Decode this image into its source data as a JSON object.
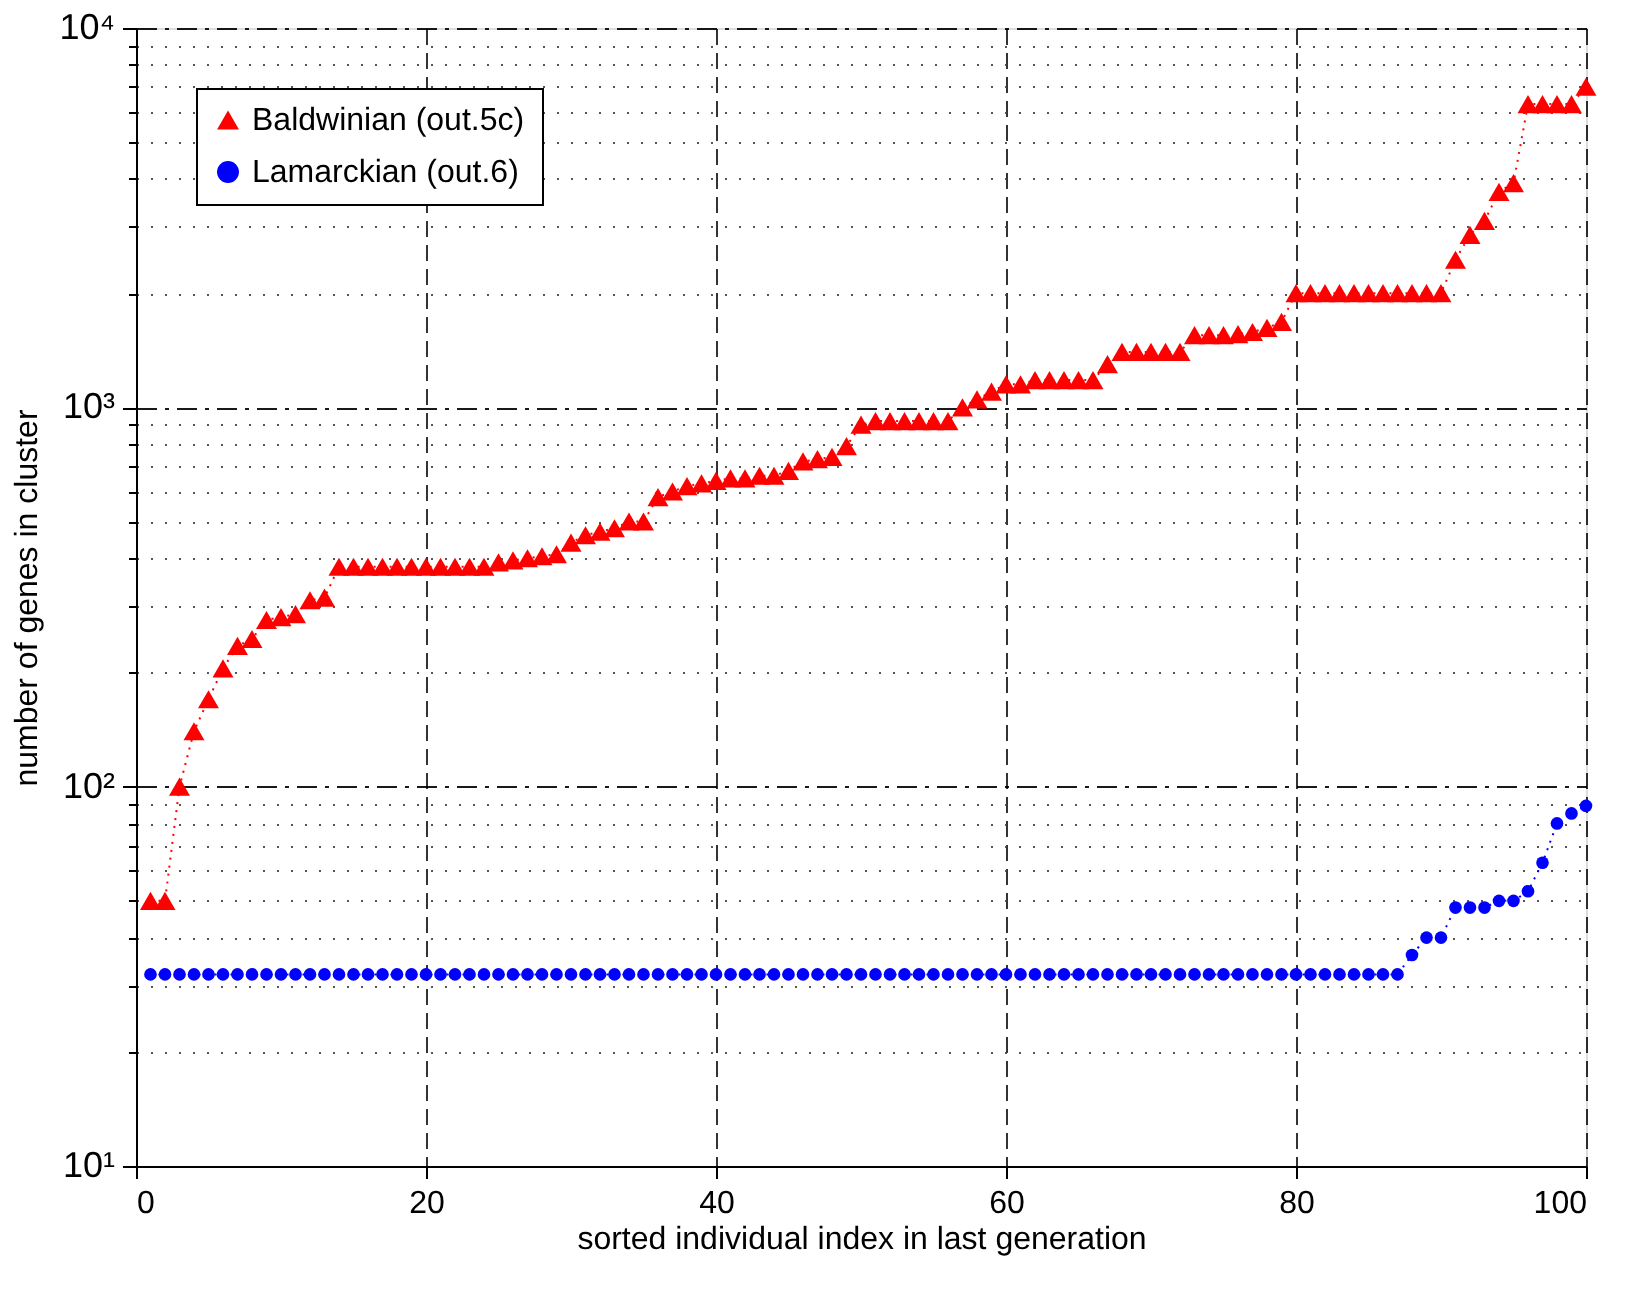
{
  "chart_data": {
    "type": "line",
    "xlabel": "sorted individual index in last generation",
    "ylabel": "number of genes in cluster",
    "x": [
      1,
      2,
      3,
      4,
      5,
      6,
      7,
      8,
      9,
      10,
      11,
      12,
      13,
      14,
      15,
      16,
      17,
      18,
      19,
      20,
      21,
      22,
      23,
      24,
      25,
      26,
      27,
      28,
      29,
      30,
      31,
      32,
      33,
      34,
      35,
      36,
      37,
      38,
      39,
      40,
      41,
      42,
      43,
      44,
      45,
      46,
      47,
      48,
      49,
      50,
      51,
      52,
      53,
      54,
      55,
      56,
      57,
      58,
      59,
      60,
      61,
      62,
      63,
      64,
      65,
      66,
      67,
      68,
      69,
      70,
      71,
      72,
      73,
      74,
      75,
      76,
      77,
      78,
      79,
      80,
      81,
      82,
      83,
      84,
      85,
      86,
      87,
      88,
      89,
      90,
      91,
      92,
      93,
      94,
      95,
      96,
      97,
      98,
      99,
      100
    ],
    "series": [
      {
        "name": "Baldwinian (out.5c)",
        "color": "#ff0000",
        "marker": "triangle",
        "values": [
          50,
          50,
          100,
          140,
          170,
          205,
          235,
          245,
          275,
          280,
          285,
          310,
          315,
          380,
          380,
          380,
          380,
          380,
          380,
          380,
          380,
          380,
          380,
          380,
          390,
          395,
          400,
          405,
          410,
          440,
          460,
          470,
          480,
          500,
          500,
          580,
          600,
          620,
          630,
          640,
          650,
          650,
          660,
          660,
          680,
          720,
          730,
          740,
          790,
          900,
          920,
          920,
          920,
          920,
          920,
          920,
          1000,
          1050,
          1100,
          1150,
          1150,
          1180,
          1180,
          1180,
          1180,
          1180,
          1300,
          1400,
          1400,
          1400,
          1400,
          1400,
          1550,
          1550,
          1550,
          1560,
          1580,
          1620,
          1680,
          2000,
          2000,
          2000,
          2000,
          2000,
          2000,
          2000,
          2000,
          2000,
          2000,
          2000,
          2450,
          2850,
          3100,
          3700,
          3900,
          6300,
          6300,
          6300,
          6300,
          7000
        ]
      },
      {
        "name": "Lamarckian (out.6)",
        "color": "#0000ff",
        "marker": "circle",
        "values": [
          32,
          32,
          32,
          32,
          32,
          32,
          32,
          32,
          32,
          32,
          32,
          32,
          32,
          32,
          32,
          32,
          32,
          32,
          32,
          32,
          32,
          32,
          32,
          32,
          32,
          32,
          32,
          32,
          32,
          32,
          32,
          32,
          32,
          32,
          32,
          32,
          32,
          32,
          32,
          32,
          32,
          32,
          32,
          32,
          32,
          32,
          32,
          32,
          32,
          32,
          32,
          32,
          32,
          32,
          32,
          32,
          32,
          32,
          32,
          32,
          32,
          32,
          32,
          32,
          32,
          32,
          32,
          32,
          32,
          32,
          32,
          32,
          32,
          32,
          32,
          32,
          32,
          32,
          32,
          32,
          32,
          32,
          32,
          32,
          32,
          32,
          32,
          36,
          40,
          40,
          48,
          48,
          48,
          50,
          50,
          53,
          63,
          80,
          85,
          89
        ]
      }
    ],
    "xlim": [
      0,
      100
    ],
    "xticks": [
      0,
      20,
      40,
      60,
      80,
      100
    ],
    "ylim": [
      10,
      10000
    ],
    "log": true,
    "yticks": [
      {
        "value": 10,
        "label": "10¹"
      },
      {
        "value": 20,
        "label": null
      },
      {
        "value": 30,
        "label": null
      },
      {
        "value": 40,
        "label": null
      },
      {
        "value": 50,
        "label": null
      },
      {
        "value": 60,
        "label": null
      },
      {
        "value": 70,
        "label": null
      },
      {
        "value": 80,
        "label": null
      },
      {
        "value": 90,
        "label": null
      },
      {
        "value": 100,
        "label": "10²"
      },
      {
        "value": 200,
        "label": null
      },
      {
        "value": 300,
        "label": null
      },
      {
        "value": 400,
        "label": null
      },
      {
        "value": 500,
        "label": null
      },
      {
        "value": 600,
        "label": null
      },
      {
        "value": 700,
        "label": null
      },
      {
        "value": 800,
        "label": null
      },
      {
        "value": 900,
        "label": null
      },
      {
        "value": 1000,
        "label": "10³"
      },
      {
        "value": 2000,
        "label": null
      },
      {
        "value": 3000,
        "label": null
      },
      {
        "value": 4000,
        "label": null
      },
      {
        "value": 5000,
        "label": null
      },
      {
        "value": 6000,
        "label": null
      },
      {
        "value": 7000,
        "label": null
      },
      {
        "value": 8000,
        "label": null
      },
      {
        "value": 9000,
        "label": null
      },
      {
        "value": 10000,
        "label": "10⁴"
      }
    ],
    "grid": true,
    "legend": "top left",
    "line_style": "dotted"
  }
}
